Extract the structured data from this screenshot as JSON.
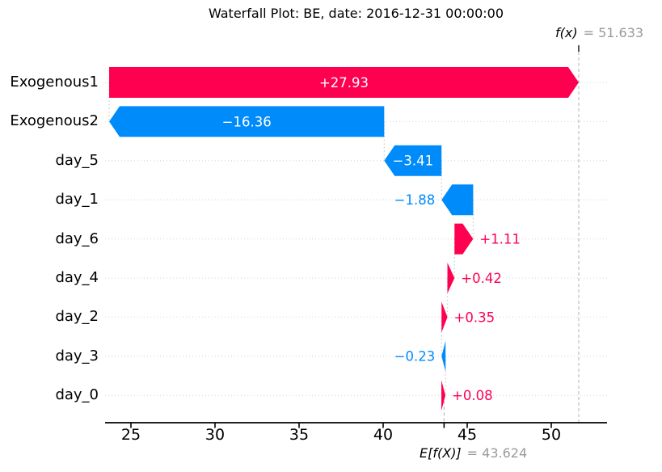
{
  "annotations": {
    "fx_label": "f(x)",
    "fx_equals": "= 51.633",
    "efx_label": "E[f(X)]",
    "efx_equals": "= 43.624"
  },
  "chart_data": {
    "type": "bar",
    "subtype": "shap-waterfall",
    "title": "Waterfall Plot: BE, date: 2016-12-31 00:00:00",
    "base_value": 43.624,
    "final_value": 51.633,
    "categories": [
      "Exogenous1",
      "Exogenous2",
      "day_5",
      "day_1",
      "day_6",
      "day_4",
      "day_2",
      "day_3",
      "day_0"
    ],
    "values": [
      27.93,
      -16.36,
      -3.41,
      -1.88,
      1.11,
      0.42,
      0.35,
      -0.23,
      0.08
    ],
    "value_labels": [
      "+27.93",
      "−16.36",
      "−3.41",
      "−1.88",
      "+1.11",
      "+0.42",
      "+0.35",
      "−0.23",
      "+0.08"
    ],
    "label_inside": [
      true,
      true,
      true,
      false,
      false,
      false,
      false,
      false,
      false
    ],
    "x_ticks": [
      25,
      30,
      35,
      40,
      45,
      50
    ],
    "x_tick_labels": [
      "25",
      "30",
      "35",
      "40",
      "45",
      "50"
    ],
    "xlim": [
      23.462,
      53.317
    ],
    "grid": true,
    "legend": "none",
    "colors": {
      "positive": "#ff0051",
      "negative": "#008bfb",
      "grid": "#dcdcdc",
      "connector": "#cccccc",
      "dashed": "#b8b8b8",
      "axis": "#000000",
      "gray_text": "#999999"
    }
  }
}
